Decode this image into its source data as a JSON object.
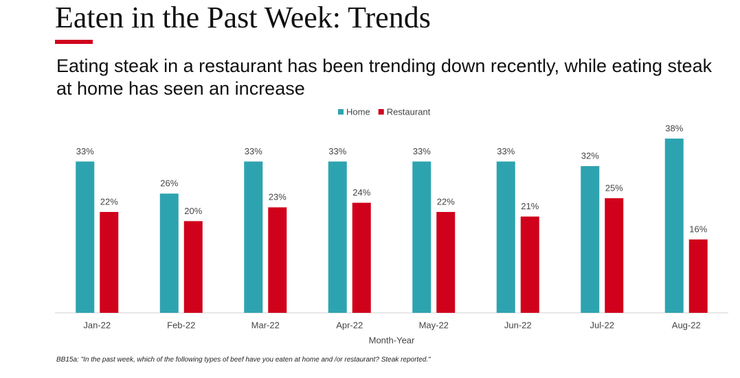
{
  "chart_data": {
    "type": "bar",
    "title": "Eaten in the Past Week: Trends",
    "subtitle": "Eating steak in a restaurant has been trending down recently, while eating steak at home has seen an increase",
    "x_label": "Month-Year",
    "footnote": "BB15a: \"In the past week, which of the following types of beef have you eaten at home and /or restaurant? Steak reported.\"",
    "categories": [
      "Jan-22",
      "Feb-22",
      "Mar-22",
      "Apr-22",
      "May-22",
      "Jun-22",
      "Jul-22",
      "Aug-22"
    ],
    "series": [
      {
        "name": "Home",
        "color": "#2ea3b0",
        "values": [
          33,
          26,
          33,
          33,
          33,
          33,
          32,
          38
        ],
        "value_labels": [
          "33%",
          "26%",
          "33%",
          "33%",
          "33%",
          "33%",
          "32%",
          "38%"
        ]
      },
      {
        "name": "Restaurant",
        "color": "#d0021b",
        "values": [
          22,
          20,
          23,
          24,
          22,
          21,
          25,
          16
        ],
        "value_labels": [
          "22%",
          "20%",
          "23%",
          "24%",
          "22%",
          "21%",
          "25%",
          "16%"
        ]
      }
    ]
  }
}
